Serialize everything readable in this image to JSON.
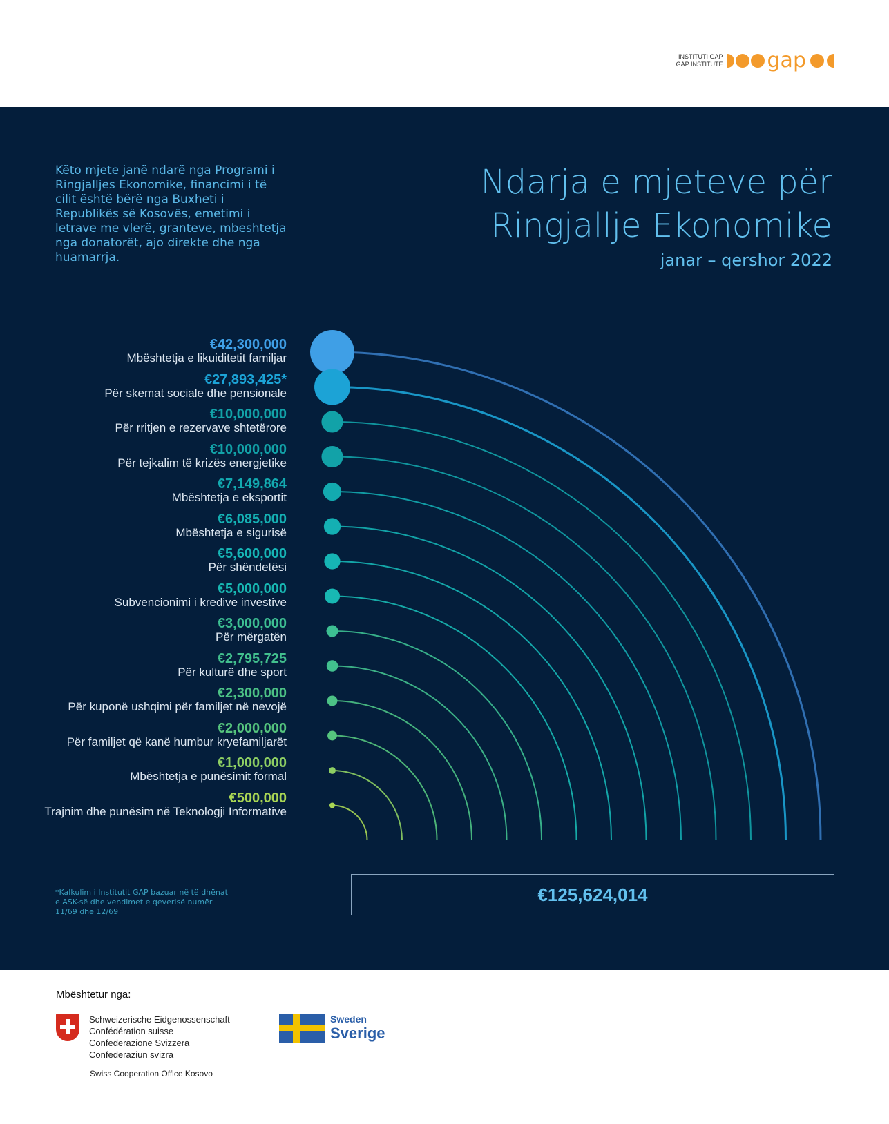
{
  "logo": {
    "line1": "INSTITUTI GAP",
    "line2": "GAP INSTITUTE",
    "word": "gap"
  },
  "intro": "Këto mjete janë ndarë nga Programi i Ringjalljes Ekonomike, financimi i të cilit është bërë nga Buxheti i Republikës së Kosovës, emetimi i letrave me vlerë, granteve, mbeshtetja nga donatorët, ajo direkte dhe nga huamarrja.",
  "title_line1": "Ndarja e mjeteve për",
  "title_line2": "Ringjallje Ekonomike",
  "subtitle": "janar – qershor 2022",
  "total": "€125,624,014",
  "footnote": "*Kalkulim i Institutit GAP bazuar në të dhënat e ASK-së dhe vendimet e qeverisë numër 11/69 dhe 12/69",
  "support_label": "Mbështetur nga:",
  "swiss": {
    "lines": [
      "Schweizerische Eidgenossenschaft",
      "Confédération suisse",
      "Confederazione Svizzera",
      "Confederaziun svizra"
    ],
    "office": "Swiss Cooperation Office Kosovo"
  },
  "sweden": {
    "en": "Sweden",
    "sv": "Sverige"
  },
  "chart_data": {
    "type": "radial-bar",
    "title": "Ndarja e mjeteve për Ringjallje Ekonomike",
    "subtitle": "janar – qershor 2022",
    "total": 125624014,
    "items": [
      {
        "value_label": "€42,300,000",
        "value": 42300000,
        "name": "Mbështetja e likuiditetit familjar",
        "color": "#3f9fe6"
      },
      {
        "value_label": "€27,893,425*",
        "value": 27893425,
        "name": "Për skemat sociale dhe pensionale",
        "color": "#1ca3d6"
      },
      {
        "value_label": "€10,000,000",
        "value": 10000000,
        "name": "Për rritjen e rezervave shtetërore",
        "color": "#12a2a8"
      },
      {
        "value_label": "€10,000,000",
        "value": 10000000,
        "name": "Për tejkalim të krizës energjetike",
        "color": "#12a2a8"
      },
      {
        "value_label": "€7,149,864",
        "value": 7149864,
        "name": "Mbështetja e eksportit",
        "color": "#13aab0"
      },
      {
        "value_label": "€6,085,000",
        "value": 6085000,
        "name": "Mbështetja e sigurisë",
        "color": "#14b0b3"
      },
      {
        "value_label": "€5,600,000",
        "value": 5600000,
        "name": "Për shëndetësi",
        "color": "#16b5b5"
      },
      {
        "value_label": "€5,000,000",
        "value": 5000000,
        "name": "Subvencionimi i kredive investive",
        "color": "#18b8b3"
      },
      {
        "value_label": "€3,000,000",
        "value": 3000000,
        "name": "Për mërgatën",
        "color": "#3dbf92"
      },
      {
        "value_label": "€2,795,725",
        "value": 2795725,
        "name": "Për kulturë dhe sport",
        "color": "#42c08e"
      },
      {
        "value_label": "€2,300,000",
        "value": 2300000,
        "name": "Për kuponë ushqimi për familjet në nevojë",
        "color": "#4cc285"
      },
      {
        "value_label": "€2,000,000",
        "value": 2000000,
        "name": "Për familjet që kanë humbur kryefamiljarët",
        "color": "#55c47d"
      },
      {
        "value_label": "€1,000,000",
        "value": 1000000,
        "name": "Mbështetja e punësimit formal",
        "color": "#8ecf63"
      },
      {
        "value_label": "€500,000",
        "value": 500000,
        "name": "Trajnim dhe punësim në Teknologji Informative",
        "color": "#a9d654"
      }
    ]
  }
}
